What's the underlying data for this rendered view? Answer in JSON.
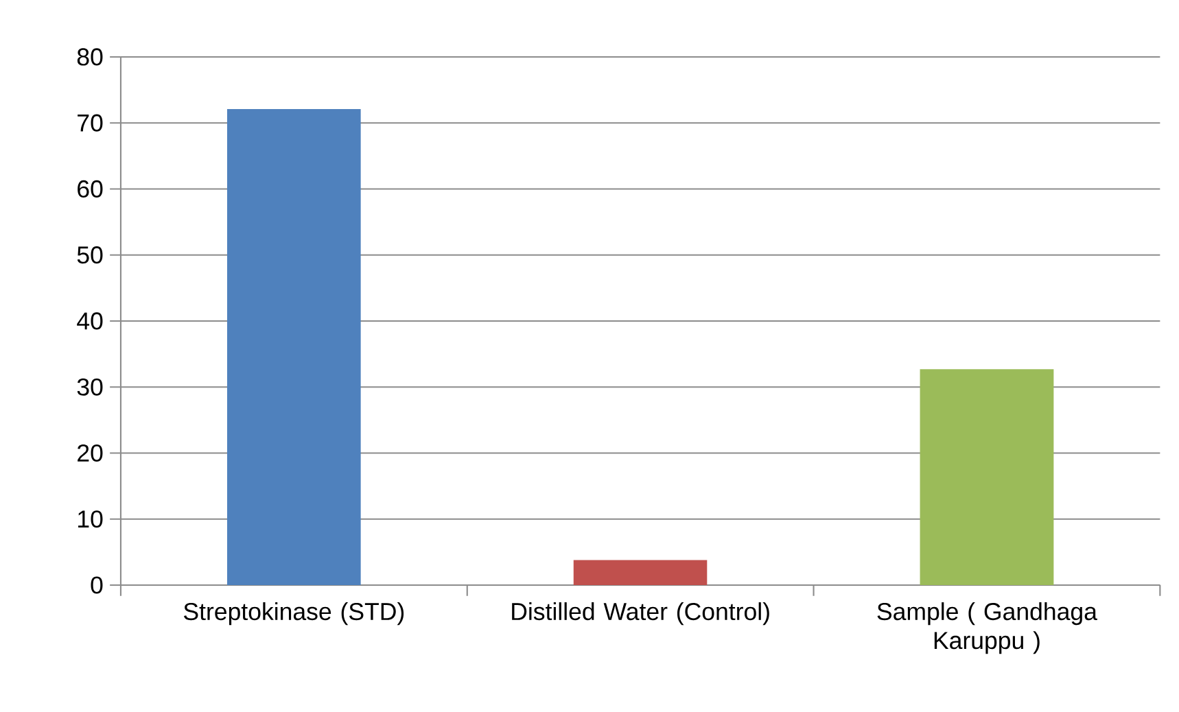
{
  "chart_data": {
    "type": "bar",
    "categories": [
      "Streptokinase (STD)",
      "Distilled Water (Control)",
      "Sample ( Gandhaga Karuppu )"
    ],
    "values": [
      72.1,
      3.8,
      32.7
    ],
    "colors": [
      "#4f81bd",
      "#c0504d",
      "#9bbb59"
    ],
    "ylim": [
      0,
      80
    ],
    "yticks": [
      0,
      10,
      20,
      30,
      40,
      50,
      60,
      70,
      80
    ],
    "grid": "y"
  }
}
